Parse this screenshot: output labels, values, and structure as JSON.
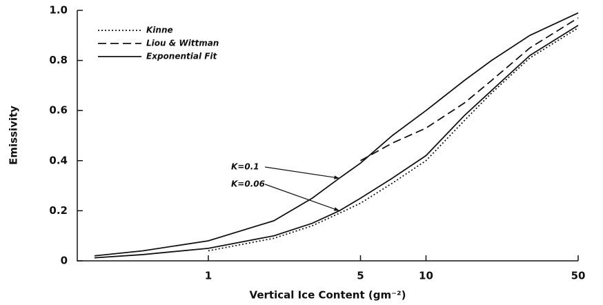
{
  "chart_data": {
    "type": "line",
    "x_label": "Vertical Ice Content (gm⁻²)",
    "y_label": "Emissivity",
    "log_x": true,
    "xlim": [
      0.25,
      50
    ],
    "xticks": [
      1,
      5,
      10,
      50
    ],
    "ylim": [
      0,
      1
    ],
    "yticks": [
      0,
      {
        "value": 0.2,
        "label": "0.2"
      },
      {
        "value": 0.4,
        "label": "0.4"
      },
      {
        "value": 0.6,
        "label": "0.6"
      },
      {
        "value": 0.8,
        "label": "0.8"
      },
      {
        "value": 1,
        "label": "1.0"
      }
    ],
    "legend": "upper left",
    "x": [
      0.3,
      0.5,
      1,
      2,
      3,
      4,
      5,
      7,
      10,
      15,
      20,
      30,
      50
    ],
    "series": [
      {
        "name": "Kinne",
        "color": "#111111",
        "style": "dotted",
        "values": [
          null,
          null,
          0.04,
          0.09,
          0.14,
          0.19,
          0.23,
          0.31,
          0.4,
          0.56,
          0.67,
          0.81,
          0.93
        ]
      },
      {
        "name": "Liou & Wittman",
        "color": "#111111",
        "style": "dashed",
        "values": [
          null,
          null,
          null,
          null,
          null,
          null,
          0.4,
          0.47,
          0.53,
          0.63,
          0.72,
          0.85,
          0.97
        ]
      },
      {
        "name": "Exponential Fit",
        "color": "#111111",
        "style": "solid",
        "annotation": "K=0.1",
        "values": [
          0.02,
          0.04,
          0.08,
          0.16,
          0.25,
          0.33,
          0.39,
          0.5,
          0.6,
          0.72,
          0.8,
          0.9,
          0.99
        ]
      },
      {
        "color": "#111111",
        "style": "solid",
        "annotation": "K=0.06",
        "values": [
          0.012,
          0.025,
          0.05,
          0.1,
          0.15,
          0.2,
          0.25,
          0.33,
          0.42,
          0.58,
          0.68,
          0.82,
          0.94
        ]
      }
    ]
  }
}
